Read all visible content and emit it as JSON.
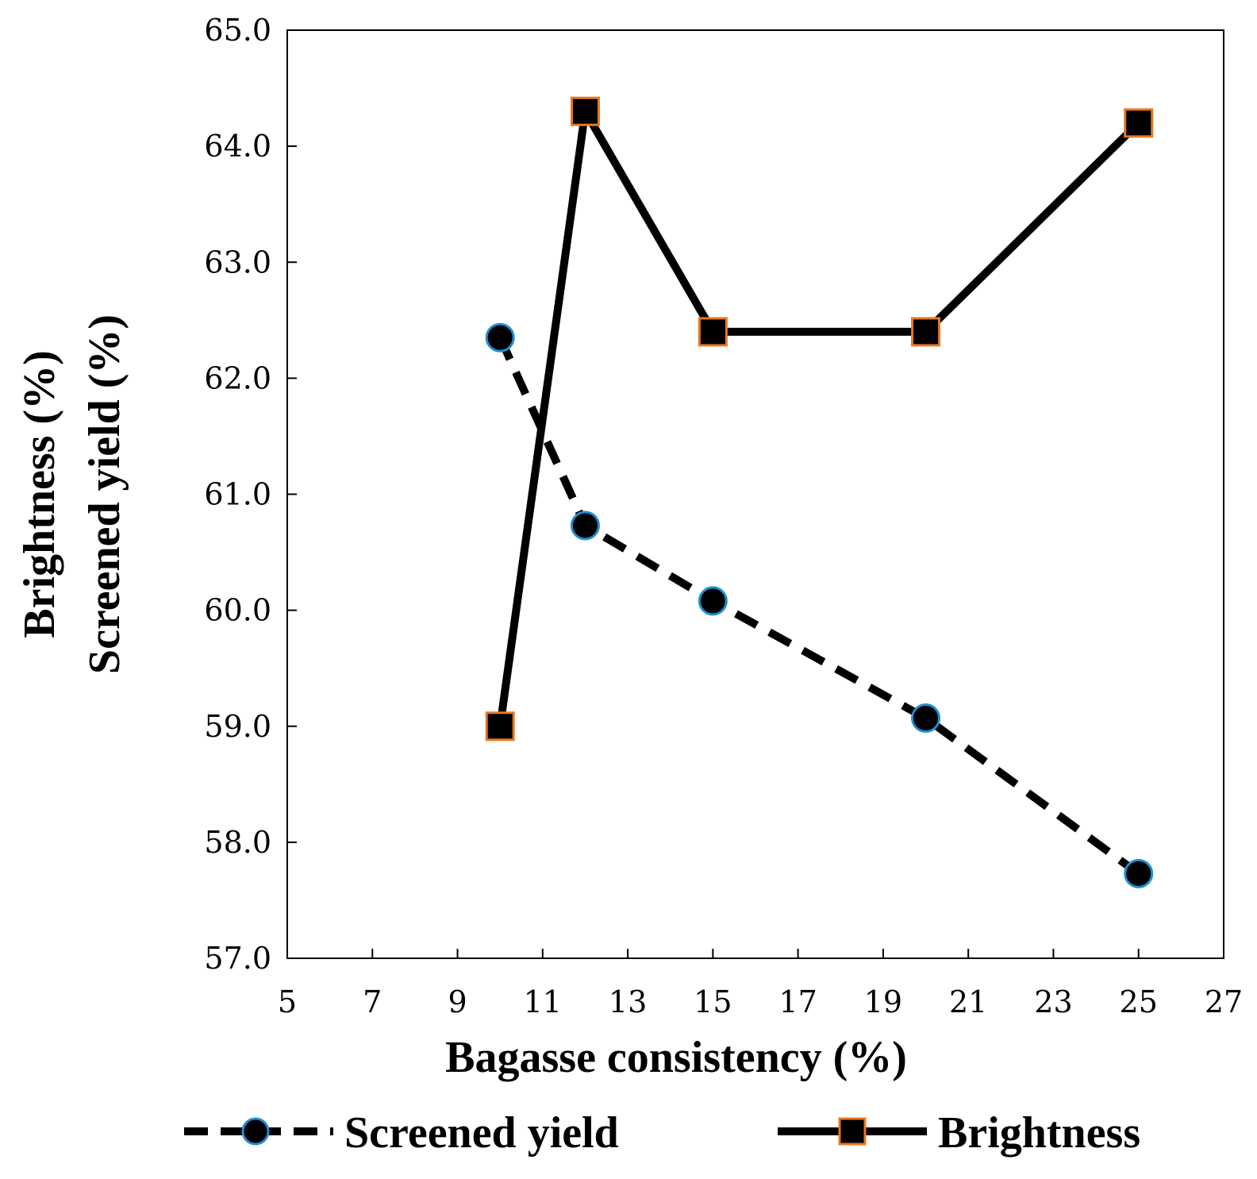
{
  "chart_data": {
    "type": "line",
    "title": "",
    "xlabel": "Bagasse consistency (%)",
    "ylabel_lines": [
      "Brightness (%)",
      "Screened yield (%)"
    ],
    "xlim": [
      5,
      27
    ],
    "ylim": [
      57.0,
      65.0
    ],
    "x_ticks": [
      5,
      7,
      9,
      11,
      13,
      15,
      17,
      19,
      21,
      23,
      25,
      27
    ],
    "x_tick_labels": [
      "5",
      "7",
      "9",
      "11",
      "13",
      "15",
      "17",
      "19",
      "21",
      "23",
      "25",
      "27"
    ],
    "y_ticks": [
      57.0,
      58.0,
      59.0,
      60.0,
      61.0,
      62.0,
      63.0,
      64.0,
      65.0
    ],
    "y_tick_labels": [
      "57.0",
      "58.0",
      "59.0",
      "60.0",
      "61.0",
      "62.0",
      "63.0",
      "64.0",
      "65.0"
    ],
    "grid": false,
    "legend_position": "bottom",
    "series": [
      {
        "name": "Screened yield",
        "marker": "circle",
        "line_style": "dashed",
        "marker_fill": "#000000",
        "marker_edge": "#1f8fd0",
        "x": [
          10,
          12,
          15,
          20,
          25
        ],
        "y": [
          62.35,
          60.73,
          60.08,
          59.07,
          57.73
        ]
      },
      {
        "name": "Brightness",
        "marker": "square",
        "line_style": "solid",
        "marker_fill": "#000000",
        "marker_edge": "#e87722",
        "x": [
          10,
          12,
          15,
          20,
          25
        ],
        "y": [
          59.0,
          64.3,
          62.4,
          62.4,
          64.2
        ]
      }
    ]
  }
}
